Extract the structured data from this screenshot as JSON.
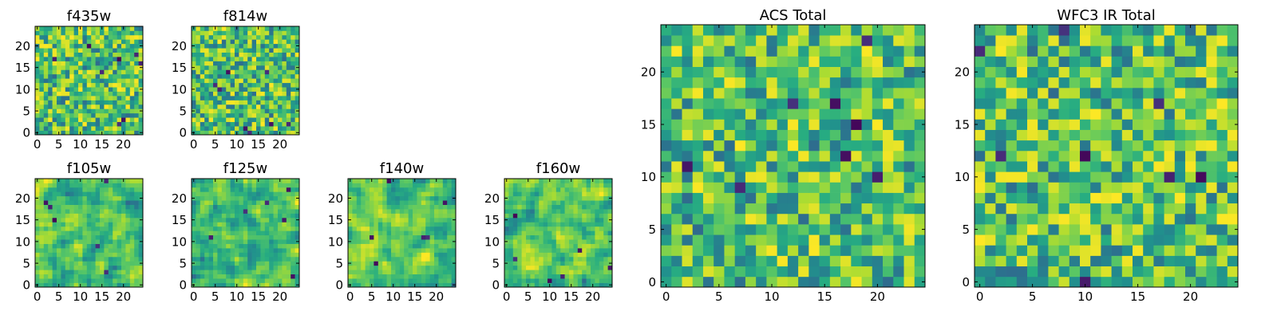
{
  "chart_data": [
    {
      "type": "heatmap",
      "title": "f435w",
      "xticks": [
        "0",
        "5",
        "10",
        "15",
        "20"
      ],
      "yticks": [
        "0",
        "5",
        "10",
        "15",
        "20"
      ],
      "size": 25,
      "xlim": [
        -0.5,
        24.5
      ],
      "ylim": [
        -0.5,
        24.5
      ],
      "colormap": "viridis",
      "pattern": "noise",
      "seed": 11
    },
    {
      "type": "heatmap",
      "title": "f814w",
      "xticks": [
        "0",
        "5",
        "10",
        "15",
        "20"
      ],
      "yticks": [
        "0",
        "5",
        "10",
        "15",
        "20"
      ],
      "size": 25,
      "xlim": [
        -0.5,
        24.5
      ],
      "ylim": [
        -0.5,
        24.5
      ],
      "colormap": "viridis",
      "pattern": "noise",
      "seed": 23
    },
    {
      "type": "heatmap",
      "title": "f105w",
      "xticks": [
        "0",
        "5",
        "10",
        "15",
        "20"
      ],
      "yticks": [
        "0",
        "5",
        "10",
        "15",
        "20"
      ],
      "size": 25,
      "xlim": [
        -0.5,
        24.5
      ],
      "ylim": [
        -0.5,
        24.5
      ],
      "colormap": "viridis",
      "pattern": "smooth",
      "seed": 37
    },
    {
      "type": "heatmap",
      "title": "f125w",
      "xticks": [
        "0",
        "5",
        "10",
        "15",
        "20"
      ],
      "yticks": [
        "0",
        "5",
        "10",
        "15",
        "20"
      ],
      "size": 25,
      "xlim": [
        -0.5,
        24.5
      ],
      "ylim": [
        -0.5,
        24.5
      ],
      "colormap": "viridis",
      "pattern": "smooth",
      "seed": 41
    },
    {
      "type": "heatmap",
      "title": "f140w",
      "xticks": [
        "0",
        "5",
        "10",
        "15",
        "20"
      ],
      "yticks": [
        "0",
        "5",
        "10",
        "15",
        "20"
      ],
      "size": 25,
      "xlim": [
        -0.5,
        24.5
      ],
      "ylim": [
        -0.5,
        24.5
      ],
      "colormap": "viridis",
      "pattern": "smooth",
      "seed": 53
    },
    {
      "type": "heatmap",
      "title": "f160w",
      "xticks": [
        "0",
        "5",
        "10",
        "15",
        "20"
      ],
      "yticks": [
        "0",
        "5",
        "10",
        "15",
        "20"
      ],
      "size": 25,
      "xlim": [
        -0.5,
        24.5
      ],
      "ylim": [
        -0.5,
        24.5
      ],
      "colormap": "viridis",
      "pattern": "smooth",
      "seed": 67
    },
    {
      "type": "heatmap",
      "title": "ACS Total",
      "xticks": [
        "0",
        "5",
        "10",
        "15",
        "20"
      ],
      "yticks": [
        "0",
        "5",
        "10",
        "15",
        "20"
      ],
      "size": 25,
      "xlim": [
        -0.5,
        24.5
      ],
      "ylim": [
        -0.5,
        24.5
      ],
      "colormap": "viridis",
      "pattern": "noise",
      "seed": 79
    },
    {
      "type": "heatmap",
      "title": "WFC3 IR Total",
      "xticks": [
        "0",
        "5",
        "10",
        "15",
        "20"
      ],
      "yticks": [
        "0",
        "5",
        "10",
        "15",
        "20"
      ],
      "size": 25,
      "xlim": [
        -0.5,
        24.5
      ],
      "ylim": [
        -0.5,
        24.5
      ],
      "colormap": "viridis",
      "pattern": "noise",
      "seed": 97
    }
  ]
}
